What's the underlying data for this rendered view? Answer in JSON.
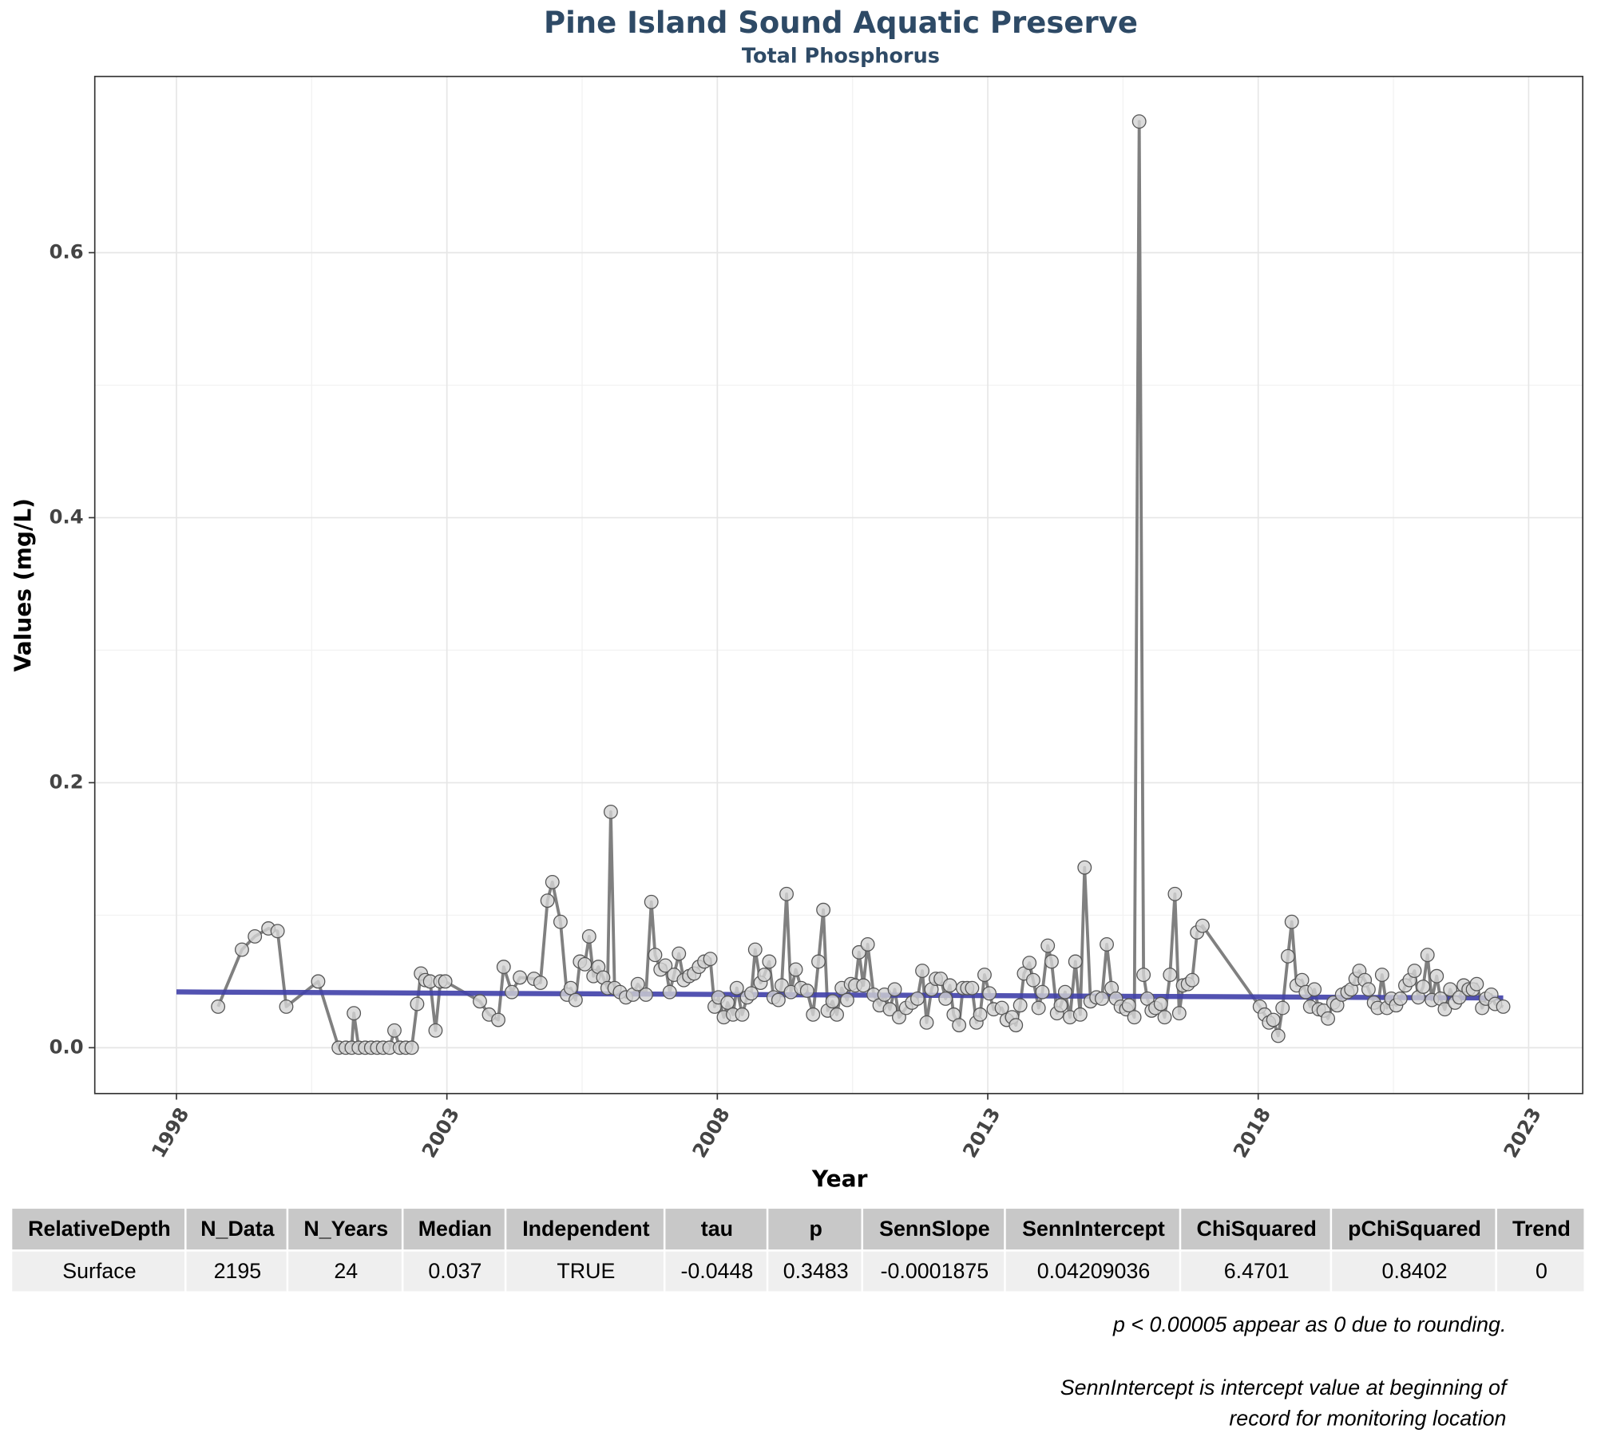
{
  "chart_data": {
    "type": "line",
    "title": "Pine Island Sound Aquatic Preserve",
    "subtitle": "Total Phosphorus",
    "x_label": "Year",
    "y_label": "Values (mg/L)",
    "xlim": [
      1996.49,
      2024.0
    ],
    "ylim": [
      -0.0346,
      0.733
    ],
    "xticks": [
      1998,
      2003,
      2008,
      2013,
      2018,
      2023
    ],
    "yticks": [
      {
        "value": 0,
        "label": "0.0"
      },
      0.2,
      0.4,
      0.6
    ],
    "grid": true,
    "color": "#808080",
    "marker_color": "#d3d3d3",
    "x": [
      1998.77,
      1999.21,
      1999.45,
      1999.7,
      1999.87,
      2000.03,
      2000.62,
      2001.0,
      2001.13,
      2001.24,
      2001.28,
      2001.37,
      2001.49,
      2001.6,
      2001.71,
      2001.82,
      2001.94,
      2002.03,
      2002.13,
      2002.24,
      2002.35,
      2002.45,
      2002.52,
      2002.6,
      2002.69,
      2002.79,
      2002.88,
      2002.97,
      2003.61,
      2003.78,
      2003.95,
      2004.05,
      2004.2,
      2004.35,
      2004.61,
      2004.73,
      2004.86,
      2004.95,
      2005.1,
      2005.22,
      2005.29,
      2005.38,
      2005.46,
      2005.55,
      2005.63,
      2005.71,
      2005.8,
      2005.89,
      2005.97,
      2006.03,
      2006.1,
      2006.2,
      2006.31,
      2006.44,
      2006.53,
      2006.68,
      2006.78,
      2006.85,
      2006.95,
      2007.04,
      2007.12,
      2007.2,
      2007.29,
      2007.38,
      2007.48,
      2007.57,
      2007.66,
      2007.76,
      2007.87,
      2007.95,
      2008.02,
      2008.12,
      2008.19,
      2008.29,
      2008.36,
      2008.46,
      2008.55,
      2008.63,
      2008.7,
      2008.8,
      2008.87,
      2008.96,
      2009.04,
      2009.13,
      2009.19,
      2009.28,
      2009.36,
      2009.45,
      2009.55,
      2009.66,
      2009.77,
      2009.87,
      2009.96,
      2010.04,
      2010.13,
      2010.21,
      2010.3,
      2010.4,
      2010.47,
      2010.55,
      2010.62,
      2010.7,
      2010.78,
      2010.89,
      2011.0,
      2011.09,
      2011.19,
      2011.28,
      2011.36,
      2011.49,
      2011.6,
      2011.7,
      2011.79,
      2011.87,
      2011.96,
      2012.04,
      2012.13,
      2012.22,
      2012.3,
      2012.37,
      2012.47,
      2012.54,
      2012.62,
      2012.71,
      2012.79,
      2012.86,
      2012.94,
      2013.03,
      2013.11,
      2013.26,
      2013.35,
      2013.45,
      2013.52,
      2013.6,
      2013.67,
      2013.77,
      2013.84,
      2013.94,
      2014.01,
      2014.11,
      2014.18,
      2014.28,
      2014.35,
      2014.43,
      2014.52,
      2014.62,
      2014.71,
      2014.79,
      2014.9,
      2015.01,
      2015.11,
      2015.2,
      2015.29,
      2015.37,
      2015.46,
      2015.56,
      2015.61,
      2015.71,
      2015.8,
      2015.88,
      2015.95,
      2016.03,
      2016.1,
      2016.2,
      2016.27,
      2016.37,
      2016.46,
      2016.54,
      2016.61,
      2016.7,
      2016.78,
      2016.87,
      2016.97,
      2018.03,
      2018.12,
      2018.2,
      2018.28,
      2018.37,
      2018.45,
      2018.55,
      2018.62,
      2018.71,
      2018.81,
      2018.88,
      2018.96,
      2019.04,
      2019.12,
      2019.21,
      2019.29,
      2019.39,
      2019.46,
      2019.55,
      2019.65,
      2019.72,
      2019.8,
      2019.87,
      2019.97,
      2020.04,
      2020.14,
      2020.21,
      2020.29,
      2020.38,
      2020.46,
      2020.55,
      2020.63,
      2020.72,
      2020.8,
      2020.89,
      2020.96,
      2021.05,
      2021.13,
      2021.21,
      2021.3,
      2021.37,
      2021.45,
      2021.55,
      2021.64,
      2021.72,
      2021.8,
      2021.89,
      2021.97,
      2022.04,
      2022.14,
      2022.21,
      2022.31,
      2022.38,
      2022.53
    ],
    "values": [
      0.031,
      0.074,
      0.084,
      0.09,
      0.088,
      0.031,
      0.05,
      0,
      0,
      0,
      0.026,
      0,
      0,
      0,
      0,
      0,
      0,
      0.013,
      0,
      0,
      0,
      0.033,
      0.056,
      0.051,
      0.05,
      0.013,
      0.05,
      0.05,
      0.035,
      0.025,
      0.021,
      0.061,
      0.042,
      0.053,
      0.052,
      0.049,
      0.111,
      0.125,
      0.095,
      0.04,
      0.045,
      0.036,
      0.065,
      0.063,
      0.084,
      0.054,
      0.061,
      0.053,
      0.045,
      0.178,
      0.045,
      0.042,
      0.038,
      0.04,
      0.048,
      0.04,
      0.11,
      0.07,
      0.059,
      0.062,
      0.042,
      0.055,
      0.071,
      0.051,
      0.054,
      0.056,
      0.061,
      0.065,
      0.067,
      0.031,
      0.038,
      0.023,
      0.034,
      0.025,
      0.045,
      0.025,
      0.038,
      0.041,
      0.074,
      0.049,
      0.055,
      0.065,
      0.038,
      0.036,
      0.047,
      0.116,
      0.042,
      0.059,
      0.045,
      0.043,
      0.025,
      0.065,
      0.104,
      0.028,
      0.035,
      0.025,
      0.045,
      0.036,
      0.048,
      0.047,
      0.072,
      0.047,
      0.078,
      0.04,
      0.032,
      0.04,
      0.029,
      0.044,
      0.023,
      0.03,
      0.034,
      0.037,
      0.058,
      0.019,
      0.044,
      0.052,
      0.052,
      0.037,
      0.047,
      0.025,
      0.017,
      0.045,
      0.045,
      0.045,
      0.019,
      0.025,
      0.055,
      0.041,
      0.029,
      0.03,
      0.021,
      0.023,
      0.017,
      0.032,
      0.056,
      0.064,
      0.051,
      0.03,
      0.042,
      0.077,
      0.065,
      0.026,
      0.032,
      0.042,
      0.023,
      0.065,
      0.025,
      0.136,
      0.035,
      0.038,
      0.037,
      0.078,
      0.045,
      0.037,
      0.031,
      0.029,
      0.032,
      0.023,
      0.699,
      0.055,
      0.037,
      0.028,
      0.03,
      0.033,
      0.023,
      0.055,
      0.116,
      0.026,
      0.047,
      0.048,
      0.051,
      0.087,
      0.092,
      0.031,
      0.025,
      0.019,
      0.021,
      0.009,
      0.03,
      0.069,
      0.095,
      0.047,
      0.051,
      0.042,
      0.031,
      0.044,
      0.029,
      0.028,
      0.022,
      0.034,
      0.032,
      0.04,
      0.042,
      0.044,
      0.052,
      0.058,
      0.051,
      0.044,
      0.034,
      0.03,
      0.055,
      0.03,
      0.037,
      0.032,
      0.037,
      0.047,
      0.051,
      0.058,
      0.038,
      0.046,
      0.07,
      0.036,
      0.054,
      0.037,
      0.029,
      0.044,
      0.034,
      0.038,
      0.047,
      0.044,
      0.044,
      0.048,
      0.03,
      0.037,
      0.04,
      0.033,
      0.031
    ],
    "trend": {
      "color": "#3f3fa8",
      "x": [
        1998,
        2022.53
      ],
      "values": [
        0.0421,
        0.0375
      ]
    }
  },
  "table": {
    "header": [
      "RelativeDepth",
      "N_Data",
      "N_Years",
      "Median",
      "Independent",
      "tau",
      "p",
      "SennSlope",
      "SennIntercept",
      "ChiSquared",
      "pChiSquared",
      "Trend"
    ],
    "rows": [
      [
        "Surface",
        "2195",
        "24",
        "0.037",
        "TRUE",
        "-0.0448",
        "0.3483",
        "-0.0001875",
        "0.04209036",
        "6.4701",
        "0.8402",
        "0"
      ]
    ]
  },
  "notes": [
    [
      "p < 0.00005 appear as 0 due to rounding."
    ],
    [
      "SennIntercept is intercept value at beginning of",
      "record for monitoring location"
    ]
  ]
}
